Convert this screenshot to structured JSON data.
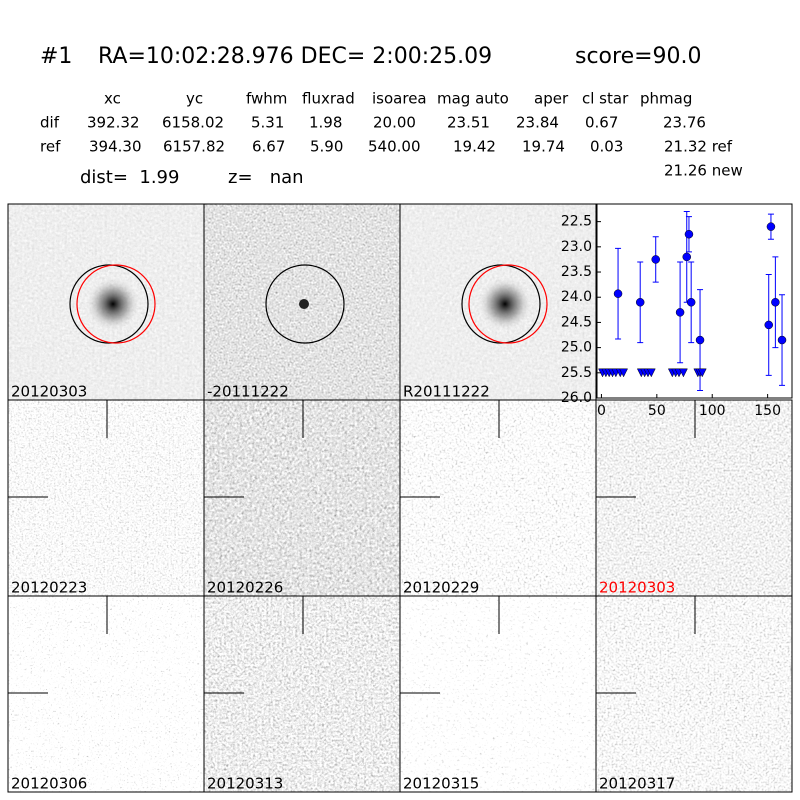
{
  "header": {
    "title": "#1",
    "coords": "RA=10:02:28.976 DEC= 2:00:25.09",
    "score": "score=90.0"
  },
  "table": {
    "columns": [
      "xc",
      "yc",
      "fwhm",
      "fluxrad",
      "isoarea",
      "mag auto",
      "aper",
      "cl star",
      "phmag"
    ],
    "rows": [
      [
        "dif",
        "392.32",
        "6158.02",
        "5.31",
        "1.98",
        "20.00",
        "23.51",
        "23.84",
        "0.67",
        "23.76"
      ],
      [
        "ref",
        "394.30",
        "6157.82",
        "6.67",
        "5.90",
        "540.00",
        "19.42",
        "19.74",
        "0.03",
        "21.32 ref"
      ]
    ],
    "extra": "21.26 new"
  },
  "dist": "dist=  1.99",
  "z": "z=   nan",
  "panels": [
    {
      "label": "20120303"
    },
    {
      "label": "-20111222"
    },
    {
      "label": "R20111222"
    },
    {
      "label": "20120223"
    },
    {
      "label": "20120226"
    },
    {
      "label": "20120229"
    },
    {
      "label": "20120303",
      "label_color": "#ff0000"
    },
    {
      "label": "20120306"
    },
    {
      "label": "20120313"
    },
    {
      "label": "20120315"
    },
    {
      "label": "20120317"
    }
  ],
  "chart_data": {
    "type": "errorbar",
    "xlim": [
      -4,
      172
    ],
    "xticks": [
      0,
      50,
      100,
      150
    ],
    "ylim": [
      26.0,
      22.15
    ],
    "yticks": [
      22.5,
      {
        "value": 23.0,
        "label": "23.0"
      },
      23.5,
      {
        "value": 24.0,
        "label": "24.0"
      },
      24.5,
      {
        "value": 25.0,
        "label": "25.0"
      },
      25.5,
      {
        "value": 26.0,
        "label": "26.0"
      }
    ],
    "series": [
      {
        "color": "#0000ff",
        "marker": "circle",
        "x": [
          15,
          35,
          49,
          71,
          77,
          79,
          81,
          89,
          151,
          153,
          157,
          163
        ],
        "values": [
          23.93,
          24.1,
          23.25,
          24.3,
          23.2,
          22.75,
          24.1,
          24.85,
          24.55,
          22.6,
          24.1,
          24.85
        ],
        "errors": [
          0.9,
          0.8,
          0.45,
          1.0,
          0.9,
          0.35,
          0.8,
          1.0,
          1.0,
          0.25,
          0.9,
          0.9
        ]
      },
      {
        "color": "#0000ff",
        "marker": "triangle-down",
        "x": [
          1,
          4,
          7,
          10,
          13,
          17,
          20,
          36,
          39,
          42,
          45,
          64,
          67,
          70,
          74,
          87,
          89,
          91
        ],
        "values": [
          25.5,
          25.5,
          25.5,
          25.5,
          25.5,
          25.5,
          25.5,
          25.5,
          25.5,
          25.5,
          25.5,
          25.5,
          25.5,
          25.5,
          25.5,
          25.5,
          25.5,
          25.5
        ]
      }
    ]
  }
}
